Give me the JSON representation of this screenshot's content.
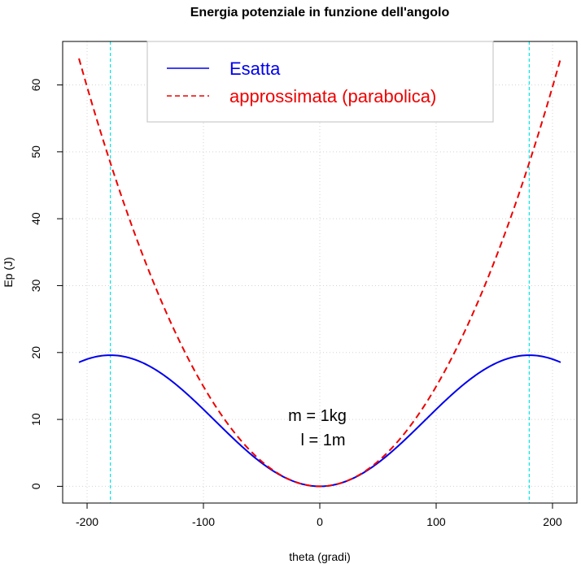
{
  "chart_data": {
    "type": "line",
    "title": "Energia potenziale in funzione dell'angolo",
    "xlabel": "theta (gradi)",
    "ylabel": "Ep (J)",
    "xlim": [
      -221,
      221
    ],
    "ylim": [
      -2.5,
      66.5
    ],
    "x_ticks": [
      -200,
      -100,
      0,
      100,
      200
    ],
    "y_ticks": [
      0,
      10,
      20,
      30,
      40,
      50,
      60
    ],
    "grid": true,
    "legend_position": "top-center",
    "theta_range": [
      -207,
      207
    ],
    "mass_kg": 1,
    "length_m": 1,
    "g": 9.8,
    "series": [
      {
        "name": "Esatta",
        "formula": "m*g*l*(1-cos(theta))",
        "color": "#0000ee",
        "dash": "solid"
      },
      {
        "name": "approssimata (parabolica)",
        "formula": "0.5*m*g*l*theta^2",
        "color": "#ee0000",
        "dash": "dashed"
      }
    ],
    "vlines": [
      {
        "x": -180,
        "color": "#00e5e5"
      },
      {
        "x": 180,
        "color": "#00e5e5"
      }
    ],
    "annotations": [
      "m = 1kg",
      "l = 1m"
    ]
  }
}
